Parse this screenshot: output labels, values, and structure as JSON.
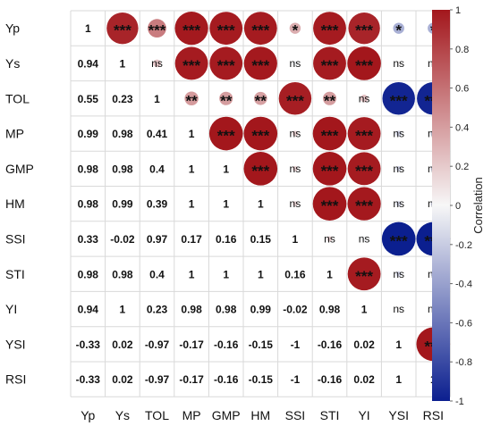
{
  "chart_data": {
    "type": "heatmap",
    "variables": [
      "Yp",
      "Ys",
      "TOL",
      "MP",
      "GMP",
      "HM",
      "SSI",
      "STI",
      "YI",
      "YSI",
      "RSI"
    ],
    "lower_triangle_values": [
      [
        1
      ],
      [
        0.94,
        1
      ],
      [
        0.55,
        0.23,
        1
      ],
      [
        0.99,
        0.98,
        0.41,
        1
      ],
      [
        0.98,
        0.98,
        0.4,
        1,
        1
      ],
      [
        0.98,
        0.99,
        0.39,
        1,
        1,
        1
      ],
      [
        0.33,
        -0.02,
        0.97,
        0.17,
        0.16,
        0.15,
        1
      ],
      [
        0.98,
        0.98,
        0.4,
        1,
        1,
        1,
        0.16,
        1
      ],
      [
        0.94,
        1,
        0.23,
        0.98,
        0.98,
        0.99,
        -0.02,
        0.98,
        1
      ],
      [
        -0.33,
        0.02,
        -0.97,
        -0.17,
        -0.16,
        -0.15,
        -1,
        -0.16,
        0.02,
        1
      ],
      [
        -0.33,
        0.02,
        -0.97,
        -0.17,
        -0.16,
        -0.15,
        -1,
        -0.16,
        0.02,
        1,
        1
      ]
    ],
    "lower_triangle_labels": [
      [
        "1"
      ],
      [
        "0.94",
        "1"
      ],
      [
        "0.55",
        "0.23",
        "1"
      ],
      [
        "0.99",
        "0.98",
        "0.41",
        "1"
      ],
      [
        "0.98",
        "0.98",
        "0.4",
        "1",
        "1"
      ],
      [
        "0.98",
        "0.99",
        "0.39",
        "1",
        "1",
        "1"
      ],
      [
        "0.33",
        "-0.02",
        "0.97",
        "0.17",
        "0.16",
        "0.15",
        "1"
      ],
      [
        "0.98",
        "0.98",
        "0.4",
        "1",
        "1",
        "1",
        "0.16",
        "1"
      ],
      [
        "0.94",
        "1",
        "0.23",
        "0.98",
        "0.98",
        "0.99",
        "-0.02",
        "0.98",
        "1"
      ],
      [
        "-0.33",
        "0.02",
        "-0.97",
        "-0.17",
        "-0.16",
        "-0.15",
        "-1",
        "-0.16",
        "0.02",
        "1"
      ],
      [
        "-0.33",
        "0.02",
        "-0.97",
        "-0.17",
        "-0.16",
        "-0.15",
        "-1",
        "-0.16",
        "0.02",
        "1",
        "1"
      ]
    ],
    "upper_triangle_significance": [
      [
        "***",
        "***",
        "***",
        "***",
        "***",
        "*",
        "***",
        "***",
        "*",
        "*"
      ],
      [
        "ns",
        "***",
        "***",
        "***",
        "ns",
        "***",
        "***",
        "ns",
        "ns"
      ],
      [
        "**",
        "**",
        "**",
        "***",
        "**",
        "ns",
        "***",
        "***"
      ],
      [
        "***",
        "***",
        "ns",
        "***",
        "***",
        "ns",
        "ns"
      ],
      [
        "***",
        "ns",
        "***",
        "***",
        "ns",
        "ns"
      ],
      [
        "ns",
        "***",
        "***",
        "ns",
        "ns"
      ],
      [
        "ns",
        "ns",
        "***",
        "***"
      ],
      [
        "***",
        "ns",
        "ns"
      ],
      [
        "ns",
        "ns"
      ],
      [
        "***"
      ]
    ],
    "colorbar": {
      "title": "Correlation",
      "range": [
        -1,
        1
      ],
      "ticks": [
        "1",
        "0.8",
        "0.6",
        "0.4",
        "0.2",
        "0",
        "-0.2",
        "-0.4",
        "-0.6",
        "-0.8",
        "-1"
      ],
      "colors": {
        "negative": "#0b1f8f",
        "neutral": "#f7f7f7",
        "positive": "#a3171c"
      }
    }
  }
}
